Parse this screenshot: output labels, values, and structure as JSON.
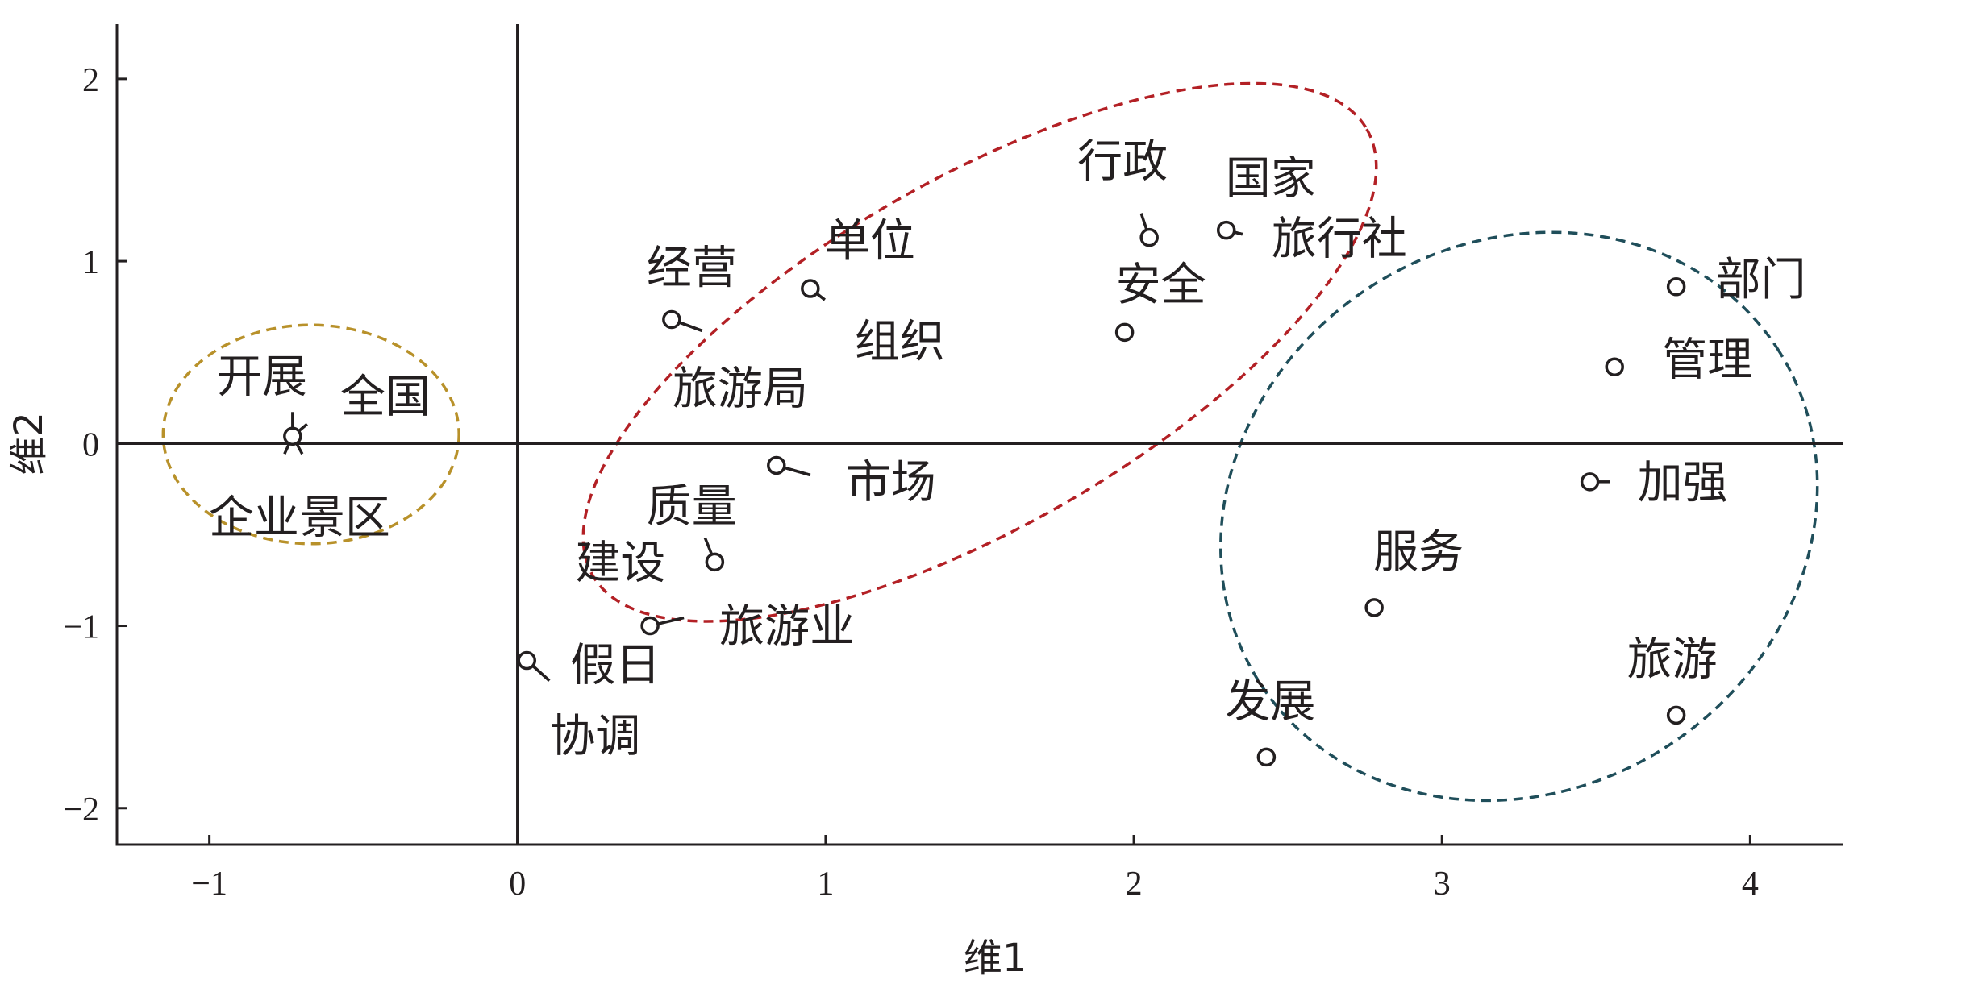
{
  "chart_data": {
    "type": "scatter",
    "xlabel": "维1",
    "ylabel": "维2",
    "xlim": [
      -1.3,
      4.3
    ],
    "ylim": [
      -2.2,
      2.3
    ],
    "xticks": [
      "−1",
      "0",
      "1",
      "2",
      "3",
      "4"
    ],
    "yticks": [
      "−2",
      "−1",
      "0",
      "1",
      "2"
    ],
    "xtick_values": [
      -1,
      0,
      1,
      2,
      3,
      4
    ],
    "ytick_values": [
      -2,
      -1,
      0,
      1,
      2
    ],
    "zero_lines": true,
    "points": [
      {
        "label": "开展",
        "x": -0.73,
        "y": 0.04
      },
      {
        "label": "全国",
        "x": -0.73,
        "y": 0.04
      },
      {
        "label": "企业",
        "x": -0.73,
        "y": 0.04
      },
      {
        "label": "景区",
        "x": -0.73,
        "y": 0.04
      },
      {
        "label": "经营",
        "x": 0.5,
        "y": 0.68
      },
      {
        "label": "旅游局",
        "x": 0.5,
        "y": 0.68
      },
      {
        "label": "单位",
        "x": 0.95,
        "y": 0.85
      },
      {
        "label": "组织",
        "x": 0.95,
        "y": 0.85
      },
      {
        "label": "行政",
        "x": 2.05,
        "y": 1.13
      },
      {
        "label": "国家",
        "x": 2.3,
        "y": 1.17
      },
      {
        "label": "旅行社",
        "x": 2.3,
        "y": 1.17
      },
      {
        "label": "安全",
        "x": 1.97,
        "y": 0.61
      },
      {
        "label": "质量",
        "x": 0.84,
        "y": -0.12
      },
      {
        "label": "市场",
        "x": 0.84,
        "y": -0.12
      },
      {
        "label": "建设",
        "x": 0.64,
        "y": -0.65
      },
      {
        "label": "旅游业",
        "x": 0.43,
        "y": -1.0
      },
      {
        "label": "假日",
        "x": 0.03,
        "y": -1.19
      },
      {
        "label": "协调",
        "x": 0.03,
        "y": -1.19
      },
      {
        "label": "部门",
        "x": 3.76,
        "y": 0.86
      },
      {
        "label": "管理",
        "x": 3.56,
        "y": 0.42
      },
      {
        "label": "加强",
        "x": 3.48,
        "y": -0.21
      },
      {
        "label": "服务",
        "x": 2.78,
        "y": -0.9
      },
      {
        "label": "发展",
        "x": 2.43,
        "y": -1.72
      },
      {
        "label": "旅游",
        "x": 3.76,
        "y": -1.49
      }
    ],
    "clusters": [
      {
        "color": "#b8912a",
        "cx": -0.67,
        "cy": 0.05,
        "rx": 0.48,
        "ry": 0.6,
        "angle": 0
      },
      {
        "color": "#b32025",
        "cx": 1.5,
        "cy": 0.5,
        "rx": 1.45,
        "ry": 0.95,
        "angle": -30
      },
      {
        "color": "#1f4e5a",
        "cx": 3.25,
        "cy": -0.4,
        "rx": 1.0,
        "ry": 1.5,
        "angle": -33
      }
    ]
  }
}
